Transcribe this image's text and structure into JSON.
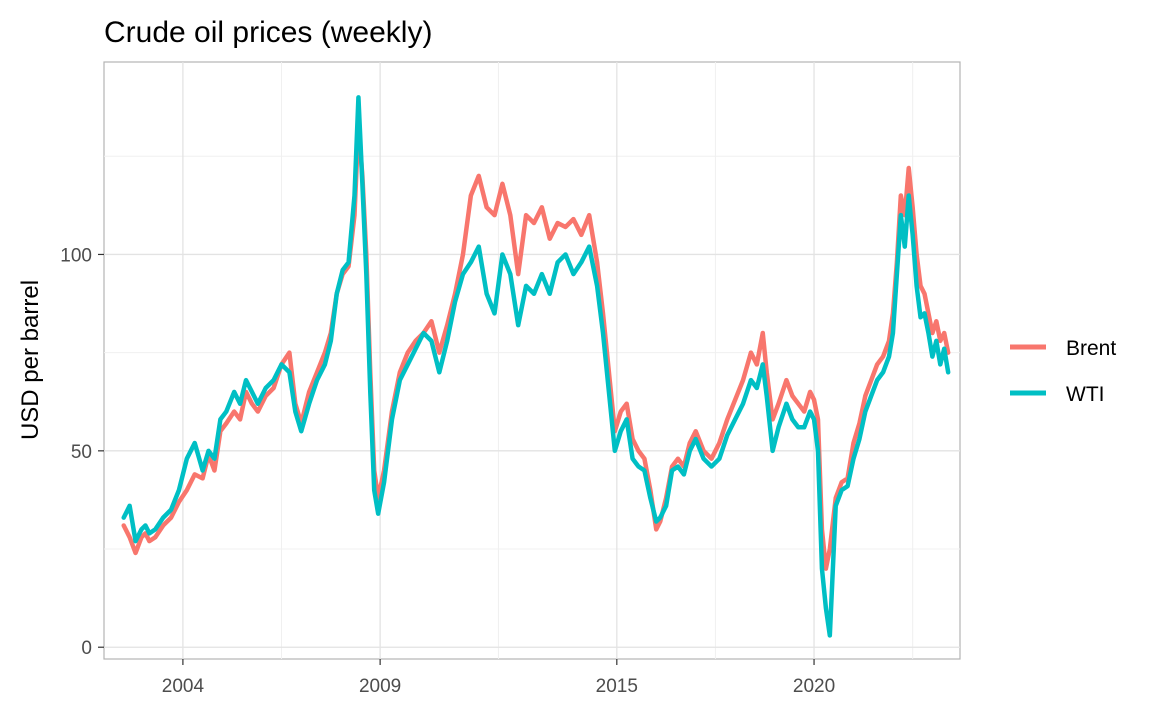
{
  "chart_data": {
    "type": "line",
    "title": "Crude oil prices (weekly)",
    "xlabel": "",
    "ylabel": "USD per barrel",
    "xlim": [
      2002.0,
      2023.7
    ],
    "ylim": [
      -3,
      149
    ],
    "x_ticks": [
      2004,
      2009,
      2015,
      2020
    ],
    "x_tick_labels": [
      "2004",
      "2009",
      "2015",
      "2020"
    ],
    "x_minor_ticks": [
      2001.5,
      2006.5,
      2012.0,
      2017.5,
      2022.5
    ],
    "y_ticks": [
      0,
      50,
      100
    ],
    "y_tick_labels": [
      "0",
      "50",
      "100"
    ],
    "y_minor_ticks": [
      25,
      75,
      125
    ],
    "grid": true,
    "legend_position": "right",
    "series": [
      {
        "name": "Brent",
        "color": "#F8766D",
        "x": [
          2002.5,
          2002.65,
          2002.8,
          2002.95,
          2003.05,
          2003.15,
          2003.3,
          2003.5,
          2003.7,
          2003.9,
          2004.1,
          2004.3,
          2004.5,
          2004.65,
          2004.8,
          2004.95,
          2005.1,
          2005.3,
          2005.45,
          2005.6,
          2005.75,
          2005.9,
          2006.1,
          2006.3,
          2006.5,
          2006.7,
          2006.85,
          2007.0,
          2007.2,
          2007.4,
          2007.6,
          2007.75,
          2007.9,
          2008.05,
          2008.2,
          2008.35,
          2008.45,
          2008.55,
          2008.65,
          2008.75,
          2008.85,
          2008.95,
          2009.1,
          2009.3,
          2009.5,
          2009.7,
          2009.9,
          2010.1,
          2010.3,
          2010.5,
          2010.7,
          2010.9,
          2011.1,
          2011.3,
          2011.5,
          2011.7,
          2011.9,
          2012.1,
          2012.3,
          2012.5,
          2012.7,
          2012.9,
          2013.1,
          2013.3,
          2013.5,
          2013.7,
          2013.9,
          2014.1,
          2014.3,
          2014.5,
          2014.65,
          2014.8,
          2014.95,
          2015.1,
          2015.25,
          2015.4,
          2015.55,
          2015.7,
          2015.85,
          2016.0,
          2016.1,
          2016.25,
          2016.4,
          2016.55,
          2016.7,
          2016.85,
          2017.0,
          2017.2,
          2017.4,
          2017.6,
          2017.8,
          2018.0,
          2018.2,
          2018.4,
          2018.55,
          2018.7,
          2018.8,
          2018.95,
          2019.1,
          2019.3,
          2019.45,
          2019.6,
          2019.75,
          2019.9,
          2020.0,
          2020.1,
          2020.2,
          2020.3,
          2020.4,
          2020.55,
          2020.7,
          2020.85,
          2021.0,
          2021.15,
          2021.3,
          2021.45,
          2021.6,
          2021.75,
          2021.9,
          2022.0,
          2022.1,
          2022.2,
          2022.3,
          2022.4,
          2022.5,
          2022.6,
          2022.7,
          2022.8,
          2022.9,
          2023.0,
          2023.1,
          2023.2,
          2023.3,
          2023.4
        ],
        "values": [
          31,
          28,
          24,
          28,
          29,
          27,
          28,
          31,
          33,
          37,
          40,
          44,
          43,
          49,
          45,
          55,
          57,
          60,
          58,
          65,
          62,
          60,
          64,
          66,
          72,
          75,
          62,
          57,
          65,
          70,
          75,
          80,
          90,
          95,
          97,
          110,
          133,
          120,
          100,
          70,
          45,
          38,
          45,
          60,
          70,
          75,
          78,
          80,
          83,
          75,
          82,
          90,
          100,
          115,
          120,
          112,
          110,
          118,
          110,
          95,
          110,
          108,
          112,
          104,
          108,
          107,
          109,
          105,
          110,
          98,
          85,
          70,
          55,
          60,
          62,
          53,
          50,
          48,
          40,
          30,
          32,
          38,
          46,
          48,
          46,
          52,
          55,
          50,
          48,
          52,
          58,
          63,
          68,
          75,
          72,
          80,
          70,
          58,
          62,
          68,
          64,
          62,
          60,
          65,
          63,
          58,
          30,
          20,
          25,
          38,
          42,
          43,
          52,
          57,
          64,
          68,
          72,
          74,
          78,
          85,
          98,
          115,
          110,
          122,
          112,
          100,
          92,
          90,
          85,
          80,
          83,
          78,
          80,
          75
        ],
        "data-note": ""
      },
      {
        "name": "WTI",
        "color": "#00BFC4",
        "x": [
          2002.5,
          2002.65,
          2002.8,
          2002.95,
          2003.05,
          2003.15,
          2003.3,
          2003.5,
          2003.7,
          2003.9,
          2004.1,
          2004.3,
          2004.5,
          2004.65,
          2004.8,
          2004.95,
          2005.1,
          2005.3,
          2005.45,
          2005.6,
          2005.75,
          2005.9,
          2006.1,
          2006.3,
          2006.5,
          2006.7,
          2006.85,
          2007.0,
          2007.2,
          2007.4,
          2007.6,
          2007.75,
          2007.9,
          2008.05,
          2008.2,
          2008.35,
          2008.45,
          2008.55,
          2008.65,
          2008.75,
          2008.85,
          2008.95,
          2009.1,
          2009.3,
          2009.5,
          2009.7,
          2009.9,
          2010.1,
          2010.3,
          2010.5,
          2010.7,
          2010.9,
          2011.1,
          2011.3,
          2011.5,
          2011.7,
          2011.9,
          2012.1,
          2012.3,
          2012.5,
          2012.7,
          2012.9,
          2013.1,
          2013.3,
          2013.5,
          2013.7,
          2013.9,
          2014.1,
          2014.3,
          2014.5,
          2014.65,
          2014.8,
          2014.95,
          2015.1,
          2015.25,
          2015.4,
          2015.55,
          2015.7,
          2015.85,
          2016.0,
          2016.1,
          2016.25,
          2016.4,
          2016.55,
          2016.7,
          2016.85,
          2017.0,
          2017.2,
          2017.4,
          2017.6,
          2017.8,
          2018.0,
          2018.2,
          2018.4,
          2018.55,
          2018.7,
          2018.8,
          2018.95,
          2019.1,
          2019.3,
          2019.45,
          2019.6,
          2019.75,
          2019.9,
          2020.0,
          2020.1,
          2020.2,
          2020.3,
          2020.4,
          2020.55,
          2020.7,
          2020.85,
          2021.0,
          2021.15,
          2021.3,
          2021.45,
          2021.6,
          2021.75,
          2021.9,
          2022.0,
          2022.1,
          2022.2,
          2022.3,
          2022.4,
          2022.5,
          2022.6,
          2022.7,
          2022.8,
          2022.9,
          2023.0,
          2023.1,
          2023.2,
          2023.3,
          2023.4
        ],
        "values": [
          33,
          36,
          27,
          30,
          31,
          29,
          30,
          33,
          35,
          40,
          48,
          52,
          45,
          50,
          48,
          58,
          60,
          65,
          62,
          68,
          65,
          62,
          66,
          68,
          72,
          70,
          60,
          55,
          62,
          68,
          72,
          78,
          90,
          96,
          98,
          115,
          140,
          118,
          95,
          65,
          40,
          34,
          42,
          58,
          68,
          72,
          76,
          80,
          78,
          70,
          78,
          88,
          95,
          98,
          102,
          90,
          85,
          100,
          95,
          82,
          92,
          90,
          95,
          90,
          98,
          100,
          95,
          98,
          102,
          92,
          80,
          65,
          50,
          55,
          58,
          48,
          46,
          45,
          38,
          32,
          33,
          36,
          45,
          46,
          44,
          50,
          53,
          48,
          46,
          48,
          54,
          58,
          62,
          68,
          66,
          72,
          64,
          50,
          56,
          62,
          58,
          56,
          56,
          60,
          58,
          50,
          20,
          10,
          3,
          36,
          40,
          41,
          48,
          53,
          60,
          64,
          68,
          70,
          74,
          80,
          95,
          110,
          102,
          115,
          105,
          92,
          84,
          85,
          80,
          74,
          78,
          72,
          76,
          70
        ]
      }
    ]
  }
}
